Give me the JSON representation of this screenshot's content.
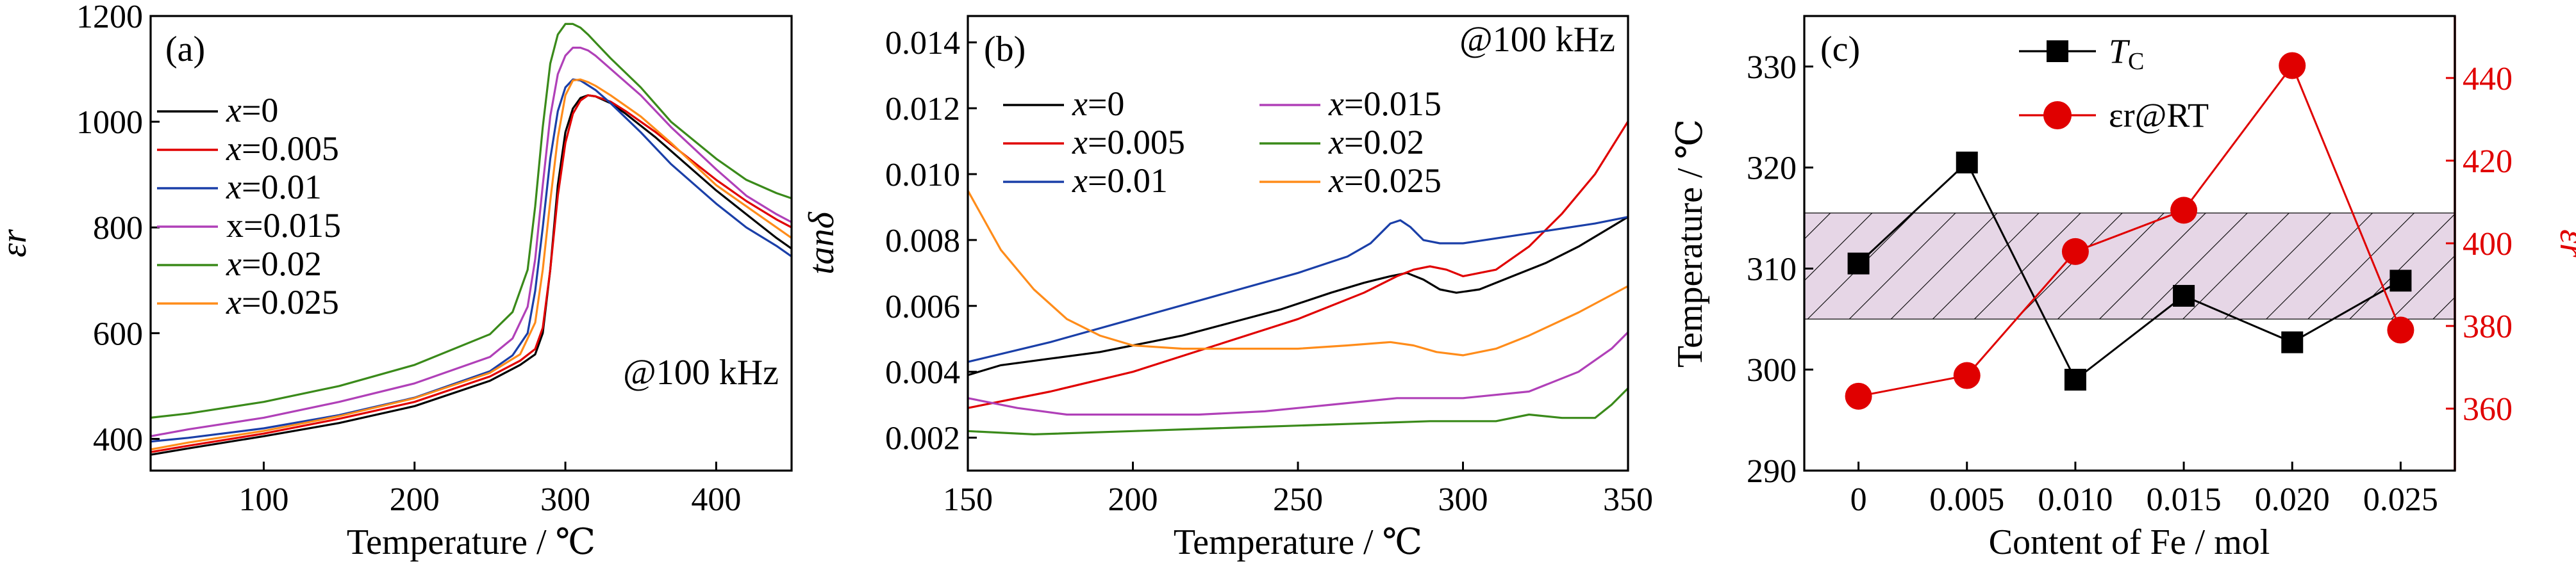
{
  "panels": [
    {
      "chart_data": {
        "type": "line",
        "panel_label": "(a)",
        "annotation": "@100 kHz",
        "xlabel": "Temperature / ℃",
        "ylabel": "εr",
        "xlim": [
          25,
          450
        ],
        "ylim": [
          340,
          1200
        ],
        "xticks": [
          100,
          200,
          300,
          400
        ],
        "yticks": [
          400,
          600,
          800,
          1000,
          1200
        ],
        "legend_position": "upper-left",
        "series": [
          {
            "name": "x=0",
            "color": "#000000",
            "x": [
              25,
              50,
              100,
              150,
              200,
              250,
              270,
              280,
              285,
              290,
              295,
              300,
              305,
              310,
              315,
              320,
              330,
              340,
              360,
              380,
              400,
              420,
              440,
              450
            ],
            "y": [
              370,
              382,
              405,
              430,
              462,
              510,
              540,
              560,
              600,
              720,
              880,
              980,
              1025,
              1045,
              1050,
              1048,
              1035,
              1015,
              970,
              920,
              870,
              825,
              780,
              760
            ]
          },
          {
            "name": "x=0.005",
            "color": "#e00000",
            "x": [
              25,
              50,
              100,
              150,
              200,
              250,
              270,
              280,
              285,
              290,
              295,
              300,
              305,
              310,
              315,
              320,
              330,
              340,
              360,
              380,
              400,
              420,
              440,
              450
            ],
            "y": [
              375,
              387,
              410,
              438,
              470,
              518,
              548,
              570,
              610,
              720,
              860,
              960,
              1015,
              1040,
              1050,
              1048,
              1038,
              1020,
              980,
              935,
              890,
              850,
              815,
              800
            ]
          },
          {
            "name": "x=0.01",
            "color": "#1a3fa8",
            "x": [
              25,
              50,
              100,
              150,
              200,
              250,
              265,
              275,
              280,
              285,
              290,
              295,
              300,
              305,
              310,
              320,
              330,
              350,
              370,
              400,
              420,
              440,
              450
            ],
            "y": [
              395,
              402,
              420,
              445,
              478,
              528,
              558,
              600,
              680,
              800,
              930,
              1020,
              1065,
              1080,
              1078,
              1060,
              1035,
              980,
              920,
              845,
              800,
              765,
              745
            ]
          },
          {
            "name": "x=0.015",
            "color": "#b040b8",
            "x": [
              25,
              50,
              100,
              150,
              200,
              250,
              265,
              275,
              280,
              285,
              290,
              295,
              300,
              305,
              310,
              315,
              320,
              330,
              350,
              370,
              400,
              420,
              440,
              450
            ],
            "y": [
              405,
              418,
              440,
              470,
              505,
              555,
              590,
              650,
              740,
              880,
              1010,
              1090,
              1125,
              1140,
              1140,
              1135,
              1125,
              1100,
              1050,
              990,
              910,
              860,
              825,
              810
            ]
          },
          {
            "name": "x=0.02",
            "color": "#3a8a1a",
            "x": [
              25,
              50,
              100,
              150,
              200,
              250,
              265,
              275,
              280,
              285,
              290,
              295,
              300,
              305,
              310,
              315,
              320,
              330,
              350,
              370,
              400,
              420,
              440,
              450
            ],
            "y": [
              440,
              448,
              470,
              500,
              540,
              598,
              640,
              720,
              840,
              990,
              1110,
              1165,
              1185,
              1185,
              1178,
              1165,
              1150,
              1120,
              1065,
              1000,
              930,
              890,
              865,
              855
            ]
          },
          {
            "name": "x=0.025",
            "color": "#ff8c1a",
            "x": [
              25,
              50,
              100,
              150,
              200,
              250,
              270,
              280,
              285,
              290,
              295,
              300,
              305,
              310,
              315,
              320,
              330,
              350,
              370,
              400,
              420,
              440,
              450
            ],
            "y": [
              380,
              393,
              415,
              443,
              477,
              525,
              560,
              620,
              720,
              850,
              970,
              1050,
              1078,
              1080,
              1075,
              1068,
              1050,
              1010,
              960,
              880,
              840,
              800,
              780
            ]
          }
        ]
      }
    },
    {
      "chart_data": {
        "type": "line",
        "panel_label": "(b)",
        "annotation": "@100 kHz",
        "xlabel": "Temperature / ℃",
        "ylabel": "tanδ",
        "xlim": [
          150,
          350
        ],
        "ylim": [
          0.001,
          0.0148
        ],
        "xticks": [
          150,
          200,
          250,
          300,
          350
        ],
        "yticks": [
          0.002,
          0.004,
          0.006,
          0.008,
          0.01,
          0.012,
          0.014
        ],
        "legend_position": "upper-left, two columns",
        "series": [
          {
            "name": "x=0",
            "color": "#000000",
            "x": [
              150,
              160,
              175,
              190,
              200,
              215,
              230,
              245,
              260,
              270,
              278,
              283,
              288,
              293,
              298,
              305,
              315,
              325,
              335,
              345,
              350
            ],
            "y": [
              0.0039,
              0.0042,
              0.0044,
              0.0046,
              0.0048,
              0.0051,
              0.0055,
              0.0059,
              0.0064,
              0.0067,
              0.0069,
              0.007,
              0.0068,
              0.0065,
              0.0064,
              0.0065,
              0.0069,
              0.0073,
              0.0078,
              0.0084,
              0.0087
            ]
          },
          {
            "name": "x=0.005",
            "color": "#e00000",
            "x": [
              150,
              175,
              200,
              225,
              250,
              270,
              280,
              285,
              290,
              295,
              300,
              310,
              320,
              330,
              340,
              350
            ],
            "y": [
              0.0029,
              0.0034,
              0.004,
              0.0048,
              0.0056,
              0.0064,
              0.0069,
              0.0071,
              0.0072,
              0.0071,
              0.0069,
              0.0071,
              0.0078,
              0.0088,
              0.01,
              0.0116
            ]
          },
          {
            "name": "x=0.01",
            "color": "#1a3fa8",
            "x": [
              150,
              175,
              200,
              225,
              250,
              265,
              272,
              278,
              281,
              284,
              288,
              293,
              300,
              320,
              340,
              350
            ],
            "y": [
              0.0043,
              0.0049,
              0.0056,
              0.0063,
              0.007,
              0.0075,
              0.0079,
              0.0085,
              0.0086,
              0.0084,
              0.008,
              0.0079,
              0.0079,
              0.0082,
              0.0085,
              0.0087
            ]
          },
          {
            "name": "x=0.015",
            "color": "#b040b8",
            "x": [
              150,
              165,
              180,
              200,
              220,
              240,
              260,
              280,
              300,
              320,
              335,
              345,
              350
            ],
            "y": [
              0.0032,
              0.0029,
              0.0027,
              0.0027,
              0.0027,
              0.0028,
              0.003,
              0.0032,
              0.0032,
              0.0034,
              0.004,
              0.0047,
              0.0052
            ]
          },
          {
            "name": "x=0.02",
            "color": "#3a8a1a",
            "x": [
              150,
              170,
              200,
              230,
              260,
              290,
              310,
              320,
              330,
              340,
              345,
              350
            ],
            "y": [
              0.0022,
              0.0021,
              0.0022,
              0.0023,
              0.0024,
              0.0025,
              0.0025,
              0.0027,
              0.0026,
              0.0026,
              0.003,
              0.0035
            ]
          },
          {
            "name": "x=0.025",
            "color": "#ff8c1a",
            "x": [
              150,
              160,
              170,
              180,
              190,
              200,
              215,
              230,
              250,
              265,
              278,
              285,
              292,
              300,
              310,
              320,
              335,
              350
            ],
            "y": [
              0.0095,
              0.0077,
              0.0065,
              0.0056,
              0.0051,
              0.0048,
              0.0047,
              0.0047,
              0.0047,
              0.0048,
              0.0049,
              0.0048,
              0.0046,
              0.0045,
              0.0047,
              0.0051,
              0.0058,
              0.0066
            ]
          }
        ]
      }
    },
    {
      "chart_data": {
        "type": "line",
        "panel_label": "(c)",
        "xlabel": "Content of Fe / mol",
        "ylabel_left": "Temperature / ℃",
        "ylabel_right": "εr",
        "categories": [
          "0",
          "0.005",
          "0.010",
          "0.015",
          "0.020",
          "0.025"
        ],
        "x": [
          0,
          0.005,
          0.01,
          0.015,
          0.02,
          0.025
        ],
        "xlim": [
          -0.0025,
          0.0275
        ],
        "ylim_left": [
          290,
          335
        ],
        "ylim_right": [
          345,
          455
        ],
        "yticks_left": [
          290,
          300,
          310,
          320,
          330
        ],
        "yticks_right": [
          360,
          380,
          400,
          420,
          440
        ],
        "shaded_band_left_axis": [
          305,
          315.5
        ],
        "legend_position": "upper-left",
        "series": [
          {
            "name": "TC",
            "color": "#000000",
            "marker": "square",
            "axis": "left",
            "values": [
              310.5,
              320.5,
              299,
              307.3,
              302.7,
              308.8
            ]
          },
          {
            "name": "εr@RT",
            "color": "#e00000",
            "marker": "circle",
            "axis": "right",
            "values": [
              363,
              368,
              398,
              408,
              443,
              379
            ]
          }
        ]
      }
    }
  ]
}
